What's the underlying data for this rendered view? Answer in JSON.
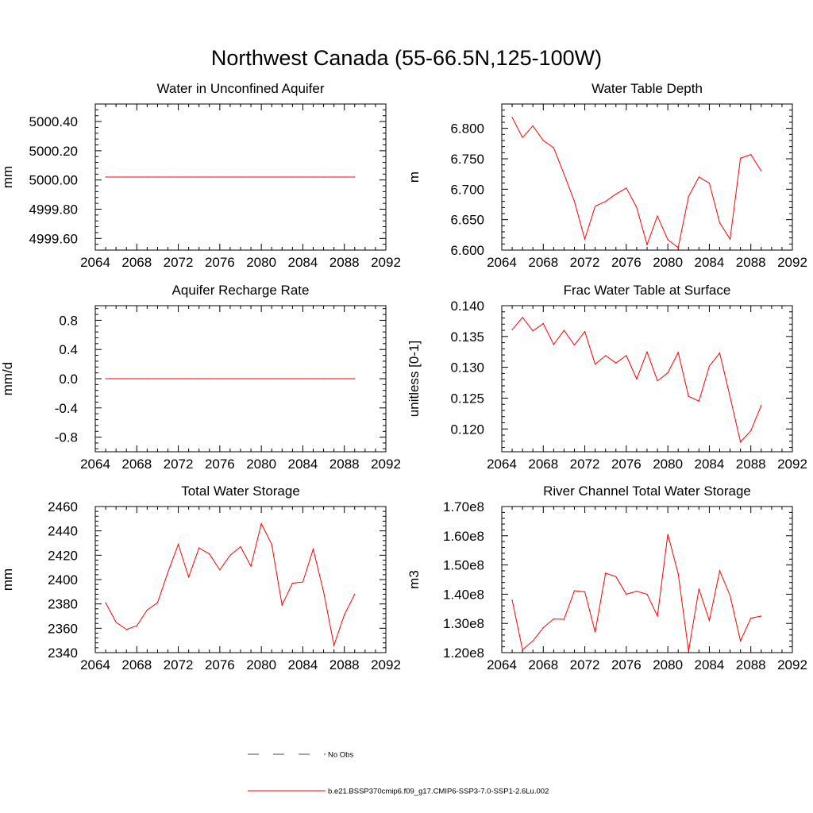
{
  "figure": {
    "title": "Northwest Canada (55-66.5N,125-100W)"
  },
  "legend": {
    "entries": [
      {
        "label": "No Obs",
        "color": "#4040a0",
        "style": "dashed"
      },
      {
        "label": "b.e21.BSSP370cmip6.f09_g17.CMIP6-SSP3-7.0-SSP1-2.6Lu.002",
        "color": "#ff0000",
        "style": "solid"
      }
    ]
  },
  "chart_data": [
    {
      "type": "line",
      "title": "Water in Unconfined Aquifer",
      "xlabel": "",
      "ylabel": "mm",
      "xlim": [
        2064,
        2092
      ],
      "ylim": [
        4999.52,
        5000.52
      ],
      "xticks": [
        2064,
        2068,
        2072,
        2076,
        2080,
        2084,
        2088,
        2092
      ],
      "yticks": [
        4999.6,
        4999.8,
        5000.0,
        5000.2,
        5000.4
      ],
      "yticklabels": [
        "4999.60",
        "4999.80",
        "5000.00",
        "5000.20",
        "5000.40"
      ],
      "series": [
        {
          "color": "#ff0000",
          "x": [
            2065,
            2066,
            2067,
            2068,
            2069,
            2070,
            2071,
            2072,
            2073,
            2074,
            2075,
            2076,
            2077,
            2078,
            2079,
            2080,
            2081,
            2082,
            2083,
            2084,
            2085,
            2086,
            2087,
            2088,
            2089
          ],
          "values": [
            5000.02,
            5000.02,
            5000.02,
            5000.02,
            5000.02,
            5000.02,
            5000.02,
            5000.02,
            5000.02,
            5000.02,
            5000.02,
            5000.02,
            5000.02,
            5000.02,
            5000.02,
            5000.02,
            5000.02,
            5000.02,
            5000.02,
            5000.02,
            5000.02,
            5000.02,
            5000.02,
            5000.02,
            5000.02
          ]
        }
      ]
    },
    {
      "type": "line",
      "title": "Water Table Depth",
      "xlabel": "",
      "ylabel": "m",
      "xlim": [
        2064,
        2092
      ],
      "ylim": [
        6.6,
        6.84
      ],
      "xticks": [
        2064,
        2068,
        2072,
        2076,
        2080,
        2084,
        2088,
        2092
      ],
      "yticks": [
        6.6,
        6.65,
        6.7,
        6.75,
        6.8
      ],
      "yticklabels": [
        "6.600",
        "6.650",
        "6.700",
        "6.750",
        "6.800"
      ],
      "series": [
        {
          "color": "#ff0000",
          "x": [
            2065,
            2066,
            2067,
            2068,
            2069,
            2070,
            2071,
            2072,
            2073,
            2074,
            2075,
            2076,
            2077,
            2078,
            2079,
            2080,
            2081,
            2082,
            2083,
            2084,
            2085,
            2086,
            2087,
            2088,
            2089
          ],
          "values": [
            6.818,
            6.785,
            6.804,
            6.78,
            6.768,
            6.725,
            6.68,
            6.618,
            6.672,
            6.68,
            6.692,
            6.702,
            6.67,
            6.609,
            6.656,
            6.617,
            6.604,
            6.688,
            6.72,
            6.71,
            6.645,
            6.618,
            6.751,
            6.757,
            6.73
          ]
        }
      ]
    },
    {
      "type": "line",
      "title": "Aquifer Recharge Rate",
      "xlabel": "",
      "ylabel": "mm/d",
      "xlim": [
        2064,
        2092
      ],
      "ylim": [
        -1.0,
        1.0
      ],
      "xticks": [
        2064,
        2068,
        2072,
        2076,
        2080,
        2084,
        2088,
        2092
      ],
      "yticks": [
        -0.8,
        -0.4,
        0.0,
        0.4,
        0.8
      ],
      "yticklabels": [
        "-0.8",
        "-0.4",
        "0.0",
        "0.4",
        "0.8"
      ],
      "series": [
        {
          "color": "#ff0000",
          "x": [
            2065,
            2066,
            2067,
            2068,
            2069,
            2070,
            2071,
            2072,
            2073,
            2074,
            2075,
            2076,
            2077,
            2078,
            2079,
            2080,
            2081,
            2082,
            2083,
            2084,
            2085,
            2086,
            2087,
            2088,
            2089
          ],
          "values": [
            0,
            0,
            0,
            0,
            0,
            0,
            0,
            0,
            0,
            0,
            0,
            0,
            0,
            0,
            0,
            0,
            0,
            0,
            0,
            0,
            0,
            0,
            0,
            0,
            0
          ]
        }
      ]
    },
    {
      "type": "line",
      "title": "Frac Water Table at Surface",
      "xlabel": "",
      "ylabel": "unitless [0-1]",
      "xlim": [
        2064,
        2092
      ],
      "ylim": [
        0.1163,
        0.14
      ],
      "xticks": [
        2064,
        2068,
        2072,
        2076,
        2080,
        2084,
        2088,
        2092
      ],
      "yticks": [
        0.12,
        0.125,
        0.13,
        0.135,
        0.14
      ],
      "yticklabels": [
        "0.120",
        "0.125",
        "0.130",
        "0.135",
        "0.140"
      ],
      "series": [
        {
          "color": "#ff0000",
          "x": [
            2065,
            2066,
            2067,
            2068,
            2069,
            2070,
            2071,
            2072,
            2073,
            2074,
            2075,
            2076,
            2077,
            2078,
            2079,
            2080,
            2081,
            2082,
            2083,
            2084,
            2085,
            2086,
            2087,
            2088,
            2089
          ],
          "values": [
            0.1361,
            0.1381,
            0.1359,
            0.1371,
            0.1337,
            0.136,
            0.1336,
            0.1358,
            0.1305,
            0.1319,
            0.1307,
            0.1319,
            0.1281,
            0.1325,
            0.1278,
            0.1291,
            0.1324,
            0.1253,
            0.1245,
            0.1302,
            0.1323,
            0.1252,
            0.1179,
            0.1197,
            0.1238
          ]
        }
      ]
    },
    {
      "type": "line",
      "title": "Total Water Storage",
      "xlabel": "",
      "ylabel": "mm",
      "xlim": [
        2064,
        2092
      ],
      "ylim": [
        2340,
        2460
      ],
      "xticks": [
        2064,
        2068,
        2072,
        2076,
        2080,
        2084,
        2088,
        2092
      ],
      "yticks": [
        2340,
        2360,
        2380,
        2400,
        2420,
        2440,
        2460
      ],
      "yticklabels": [
        "2340",
        "2360",
        "2380",
        "2400",
        "2420",
        "2440",
        "2460"
      ],
      "series": [
        {
          "color": "#ff0000",
          "x": [
            2065,
            2066,
            2067,
            2068,
            2069,
            2070,
            2071,
            2072,
            2073,
            2074,
            2075,
            2076,
            2077,
            2078,
            2079,
            2080,
            2081,
            2082,
            2083,
            2084,
            2085,
            2086,
            2087,
            2088,
            2089
          ],
          "values": [
            2381,
            2365,
            2359,
            2362,
            2375,
            2381,
            2406,
            2429,
            2402,
            2426,
            2421,
            2408,
            2420,
            2427,
            2411,
            2446,
            2429,
            2379,
            2397,
            2398,
            2425,
            2390,
            2346,
            2371,
            2388
          ]
        }
      ]
    },
    {
      "type": "line",
      "title": "River Channel Total Water Storage",
      "xlabel": "",
      "ylabel": "m3",
      "xlim": [
        2064,
        2092
      ],
      "ylim": [
        120000000,
        170000000
      ],
      "xticks": [
        2064,
        2068,
        2072,
        2076,
        2080,
        2084,
        2088,
        2092
      ],
      "yticks": [
        120000000,
        130000000,
        140000000,
        150000000,
        160000000,
        170000000
      ],
      "yticklabels": [
        "1.20e8",
        "1.30e8",
        "1.40e8",
        "1.50e8",
        "1.60e8",
        "1.70e8"
      ],
      "series": [
        {
          "color": "#ff0000",
          "x": [
            2065,
            2066,
            2067,
            2068,
            2069,
            2070,
            2071,
            2072,
            2073,
            2074,
            2075,
            2076,
            2077,
            2078,
            2079,
            2080,
            2081,
            2082,
            2083,
            2084,
            2085,
            2086,
            2087,
            2088,
            2089
          ],
          "values": [
            138000000,
            121000000,
            124000000,
            128500000,
            131500000,
            131400000,
            141200000,
            140800000,
            127000000,
            147200000,
            146000000,
            140000000,
            141000000,
            140000000,
            132500000,
            160500000,
            147000000,
            120500000,
            141800000,
            131000000,
            148000000,
            139500000,
            124000000,
            131800000,
            132500000
          ]
        }
      ]
    }
  ]
}
